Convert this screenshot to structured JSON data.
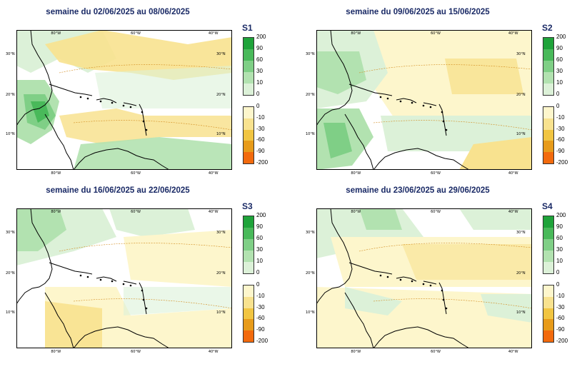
{
  "panels": [
    {
      "title": "semaine du 02/06/2025 au 08/06/2025",
      "id": "S1"
    },
    {
      "title": "semaine du 09/06/2025 au 15/06/2025",
      "id": "S2"
    },
    {
      "title": "semaine du 16/06/2025 au 22/06/2025",
      "id": "S3"
    },
    {
      "title": "semaine du 23/06/2025 au 29/06/2025",
      "id": "S4"
    }
  ],
  "axes": {
    "lon_labels": [
      "80°W",
      "60°W",
      "40°W"
    ],
    "lat_labels": [
      "30°N",
      "20°N",
      "10°N"
    ]
  },
  "legend_positive": {
    "ticks": [
      "200",
      "90",
      "60",
      "30",
      "10",
      "0"
    ],
    "colors": [
      "#1fa33a",
      "#49b95a",
      "#7fcf86",
      "#b2e2b0",
      "#dcf1d8"
    ]
  },
  "legend_negative": {
    "ticks": [
      "0",
      "-10",
      "-30",
      "-60",
      "-90",
      "-200"
    ],
    "colors": [
      "#fdf6cc",
      "#f8e28f",
      "#f1c542",
      "#e79b1a",
      "#f26a0d"
    ]
  }
}
